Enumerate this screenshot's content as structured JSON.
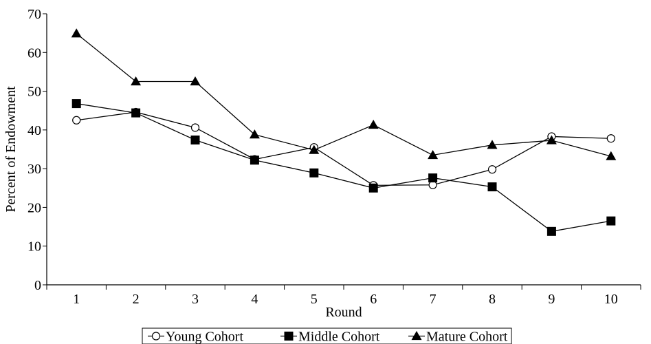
{
  "chart_data": {
    "type": "line",
    "title": "",
    "xlabel": "Round",
    "ylabel": "Percent of Endowment",
    "x": [
      1,
      2,
      3,
      4,
      5,
      6,
      7,
      8,
      9,
      10
    ],
    "xticks": [
      "1",
      "2",
      "3",
      "4",
      "5",
      "6",
      "7",
      "8",
      "9",
      "10"
    ],
    "ylim": [
      0,
      70
    ],
    "yticks": [
      0,
      10,
      20,
      30,
      40,
      50,
      60,
      70
    ],
    "grid": false,
    "legend": "bottom-center",
    "series": [
      {
        "name": "Young Cohort",
        "marker": "open-circle",
        "values": [
          42.5,
          44.6,
          40.6,
          32.4,
          35.5,
          25.7,
          25.8,
          29.8,
          38.3,
          37.8
        ]
      },
      {
        "name": "Middle Cohort",
        "marker": "filled-square",
        "values": [
          46.8,
          44.4,
          37.4,
          32.2,
          28.9,
          25.0,
          27.6,
          25.3,
          13.8,
          16.5
        ]
      },
      {
        "name": "Mature Cohort",
        "marker": "filled-triangle",
        "values": [
          64.9,
          52.5,
          52.5,
          38.8,
          34.8,
          41.3,
          33.5,
          36.1,
          37.3,
          33.2
        ]
      }
    ]
  }
}
